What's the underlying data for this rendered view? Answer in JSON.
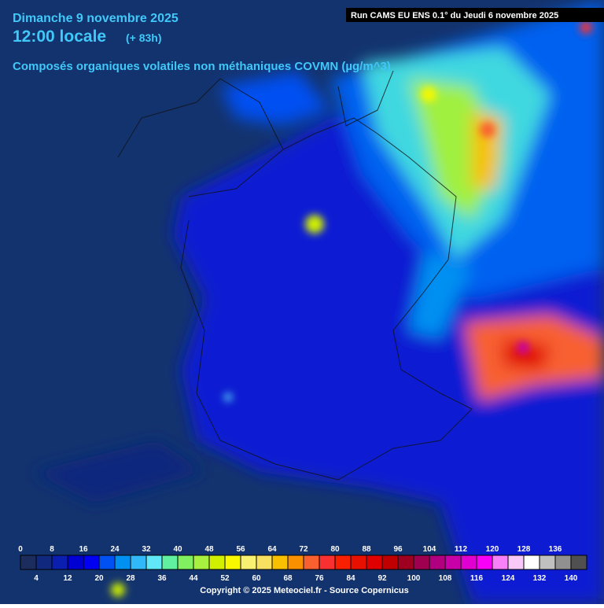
{
  "header": {
    "date": "Dimanche 9 novembre 2025",
    "time": "12:00 locale",
    "lead": "(+ 83h)",
    "title": "Composés organiques volatiles non méthaniques COVMN (µg/m^3)",
    "run": "Run CAMS EU ENS 0.1° du Jeudi 6 novembre 2025"
  },
  "legend": {
    "ticks": [
      0,
      4,
      8,
      12,
      16,
      20,
      24,
      28,
      32,
      36,
      40,
      44,
      48,
      52,
      56,
      60,
      64,
      68,
      72,
      76,
      80,
      84,
      88,
      92,
      96,
      100,
      104,
      108,
      112,
      116,
      120,
      124,
      128,
      132,
      136,
      140
    ],
    "colors": [
      "#1c2c5c",
      "#10287e",
      "#0a1eb0",
      "#0000d2",
      "#0000f2",
      "#0050f2",
      "#0090f2",
      "#30b8f8",
      "#60e8f8",
      "#60f0a0",
      "#80f060",
      "#a8f040",
      "#d0f000",
      "#f8f800",
      "#f8f070",
      "#f8e060",
      "#f8c000",
      "#f89000",
      "#f86030",
      "#f83030",
      "#f82000",
      "#e81000",
      "#e00000",
      "#c00000",
      "#a00020",
      "#a00050",
      "#b00080",
      "#c800a8",
      "#e000d0",
      "#f800f8",
      "#f880f8",
      "#f8c8f8",
      "#ffffff",
      "#c0c0c0",
      "#909090",
      "#505050"
    ]
  },
  "footer": {
    "copyright": "Copyright © 2025 Meteociel.fr - Source Copernicus"
  }
}
